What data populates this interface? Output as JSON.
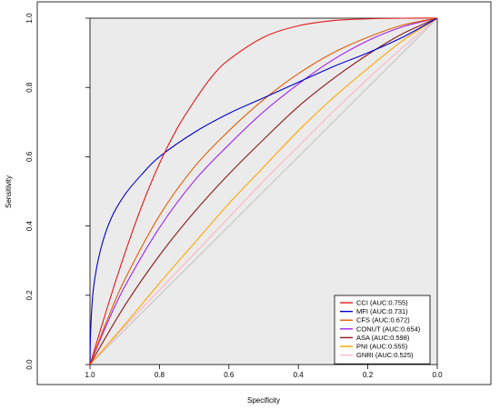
{
  "chart_data": {
    "type": "line",
    "title": "",
    "xlabel": "Specificity",
    "ylabel": "Sensitivity",
    "xlim": [
      1.0,
      0.0
    ],
    "ylim": [
      0.0,
      1.0
    ],
    "x_ticks": [
      "1.0",
      "0.8",
      "0.6",
      "0.4",
      "0.2",
      "0.0"
    ],
    "y_ticks": [
      "0.0",
      "0.2",
      "0.4",
      "0.6",
      "0.8",
      "1.0"
    ],
    "x_tick_values": [
      1.0,
      0.8,
      0.6,
      0.4,
      0.2,
      0.0
    ],
    "y_tick_values": [
      0.0,
      0.2,
      0.4,
      0.6,
      0.8,
      1.0
    ],
    "panel_background": "#ebebeb",
    "diagonal_color": "#bdbdbd",
    "legend_position": "bottom-right",
    "series": [
      {
        "name": "CCI (AUC:0.755)",
        "color": "#e31a1c",
        "points": [
          [
            1.0,
            0.0
          ],
          [
            0.95,
            0.165
          ],
          [
            0.9,
            0.32
          ],
          [
            0.85,
            0.46
          ],
          [
            0.8,
            0.58
          ],
          [
            0.75,
            0.68
          ],
          [
            0.7,
            0.76
          ],
          [
            0.65,
            0.83
          ],
          [
            0.6,
            0.88
          ],
          [
            0.5,
            0.945
          ],
          [
            0.4,
            0.978
          ],
          [
            0.3,
            0.993
          ],
          [
            0.2,
            0.998
          ],
          [
            0.1,
            1.0
          ],
          [
            0.0,
            1.0
          ]
        ]
      },
      {
        "name": "MFI (AUC:0.731)",
        "color": "#0000cc",
        "points": [
          [
            1.0,
            0.0
          ],
          [
            0.998,
            0.1
          ],
          [
            0.99,
            0.22
          ],
          [
            0.97,
            0.33
          ],
          [
            0.94,
            0.42
          ],
          [
            0.9,
            0.49
          ],
          [
            0.85,
            0.55
          ],
          [
            0.8,
            0.6
          ],
          [
            0.7,
            0.67
          ],
          [
            0.6,
            0.725
          ],
          [
            0.5,
            0.77
          ],
          [
            0.4,
            0.815
          ],
          [
            0.3,
            0.86
          ],
          [
            0.2,
            0.9
          ],
          [
            0.1,
            0.945
          ],
          [
            0.0,
            1.0
          ]
        ]
      },
      {
        "name": "CFS (AUC:0.672)",
        "color": "#e65c00",
        "points": [
          [
            1.0,
            0.0
          ],
          [
            0.95,
            0.13
          ],
          [
            0.9,
            0.245
          ],
          [
            0.8,
            0.43
          ],
          [
            0.7,
            0.57
          ],
          [
            0.6,
            0.675
          ],
          [
            0.5,
            0.765
          ],
          [
            0.4,
            0.84
          ],
          [
            0.3,
            0.9
          ],
          [
            0.2,
            0.945
          ],
          [
            0.1,
            0.98
          ],
          [
            0.0,
            1.0
          ]
        ]
      },
      {
        "name": "CONUT (AUC:0.654)",
        "color": "#a020f0",
        "points": [
          [
            1.0,
            0.0
          ],
          [
            0.95,
            0.12
          ],
          [
            0.9,
            0.225
          ],
          [
            0.8,
            0.395
          ],
          [
            0.7,
            0.53
          ],
          [
            0.6,
            0.635
          ],
          [
            0.5,
            0.73
          ],
          [
            0.4,
            0.81
          ],
          [
            0.3,
            0.88
          ],
          [
            0.2,
            0.935
          ],
          [
            0.1,
            0.975
          ],
          [
            0.0,
            1.0
          ]
        ]
      },
      {
        "name": "ASA (AUC:0.598)",
        "color": "#8b1a1a",
        "points": [
          [
            1.0,
            0.0
          ],
          [
            0.9,
            0.17
          ],
          [
            0.8,
            0.315
          ],
          [
            0.7,
            0.44
          ],
          [
            0.6,
            0.55
          ],
          [
            0.5,
            0.65
          ],
          [
            0.4,
            0.745
          ],
          [
            0.3,
            0.825
          ],
          [
            0.2,
            0.895
          ],
          [
            0.1,
            0.955
          ],
          [
            0.0,
            1.0
          ]
        ]
      },
      {
        "name": "PNI (AUC:0.555)",
        "color": "#ffa500",
        "points": [
          [
            1.0,
            0.0
          ],
          [
            0.9,
            0.115
          ],
          [
            0.8,
            0.235
          ],
          [
            0.7,
            0.35
          ],
          [
            0.6,
            0.465
          ],
          [
            0.5,
            0.57
          ],
          [
            0.4,
            0.675
          ],
          [
            0.3,
            0.77
          ],
          [
            0.2,
            0.855
          ],
          [
            0.1,
            0.935
          ],
          [
            0.0,
            1.0
          ]
        ]
      },
      {
        "name": "GNRI (AUC:0.525)",
        "color": "#ffb6c1",
        "points": [
          [
            1.0,
            0.0
          ],
          [
            0.9,
            0.11
          ],
          [
            0.8,
            0.215
          ],
          [
            0.7,
            0.32
          ],
          [
            0.6,
            0.425
          ],
          [
            0.5,
            0.53
          ],
          [
            0.4,
            0.63
          ],
          [
            0.3,
            0.73
          ],
          [
            0.2,
            0.825
          ],
          [
            0.1,
            0.915
          ],
          [
            0.0,
            1.0
          ]
        ]
      }
    ]
  }
}
